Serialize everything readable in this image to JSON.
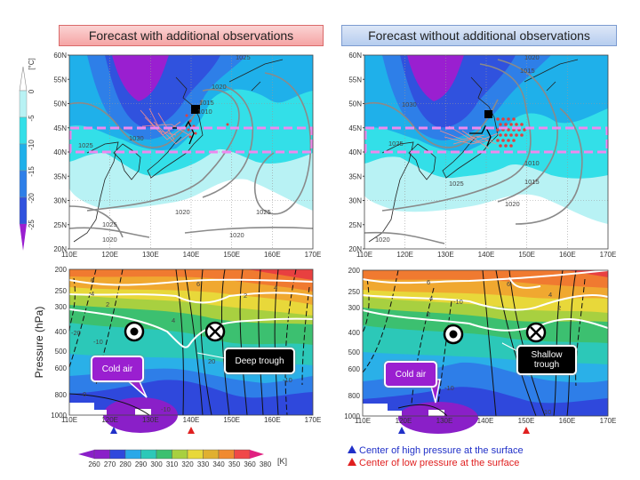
{
  "titles": {
    "left": "Forecast with additional observations",
    "right": "Forecast without additional observations"
  },
  "temperature_colorbar": {
    "unit": "[°C]",
    "ticks": [
      "0",
      "-5",
      "-10",
      "-15",
      "-20",
      "-25"
    ],
    "colors": [
      "#ffffff",
      "#b8f2f4",
      "#33dfe8",
      "#1fb0ea",
      "#2e7fe8",
      "#3052de",
      "#9a1fd0"
    ]
  },
  "map_axes": {
    "lat_ticks": [
      "60N",
      "55N",
      "50N",
      "45N",
      "40N",
      "35N",
      "30N",
      "25N",
      "20N"
    ],
    "lon_ticks": [
      "110E",
      "120E",
      "130E",
      "140E",
      "150E",
      "160E",
      "170E"
    ]
  },
  "left_map": {
    "isobar_labels": [
      "1025",
      "1020",
      "1015",
      "1010",
      "1030",
      "1025",
      "1020",
      "1025",
      "1025",
      "1020",
      "1020"
    ]
  },
  "right_map": {
    "isobar_labels": [
      "1020",
      "1015",
      "1030",
      "1025",
      "1010",
      "1015",
      "1025",
      "1020",
      "1020"
    ]
  },
  "cross_section_axes": {
    "ylabel": "Pressure (hPa)",
    "pressure_ticks": [
      "200",
      "250",
      "300",
      "400",
      "500",
      "600",
      "800",
      "1000"
    ],
    "lon_ticks": [
      "110E",
      "120E",
      "130E",
      "140E",
      "150E",
      "160E",
      "170E"
    ]
  },
  "left_section": {
    "contour_labels": [
      "6",
      "4",
      "2",
      "4",
      "6",
      "2",
      "4",
      "-20",
      "-10",
      "20",
      "-10",
      "0",
      "-10"
    ],
    "cold_air": "Cold air",
    "trough": "Deep trough"
  },
  "right_section": {
    "contour_labels": [
      "6",
      "4",
      "2",
      "-10",
      "6",
      "4",
      "2",
      "-10",
      "10"
    ],
    "cold_air": "Cold air",
    "trough": "Shallow trough"
  },
  "theta_colorbar": {
    "unit": "[K]",
    "ticks": [
      "260",
      "270",
      "280",
      "290",
      "300",
      "310",
      "320",
      "330",
      "340",
      "350",
      "360",
      "380"
    ],
    "colors": [
      "#8a1fc8",
      "#2f48dc",
      "#2aa8e8",
      "#2cc8b8",
      "#3cc070",
      "#a8d040",
      "#e8d83a",
      "#e0b030",
      "#f08a30",
      "#f04848",
      "#e02080"
    ]
  },
  "legend": {
    "high": "Center of high pressure at the surface",
    "low": "Center of low pressure at the surface",
    "high_color": "#2030c8",
    "low_color": "#e02020"
  }
}
